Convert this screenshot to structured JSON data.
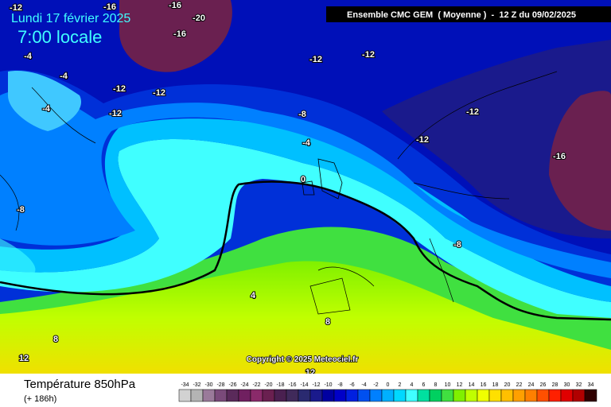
{
  "header": {
    "date": "Lundi 17 février 2025",
    "time": "7:00 locale",
    "model": "Ensemble CMC GEM  ( Moyenne )  -  12 Z du 09/02/2025"
  },
  "copyright": "Copyright © 2025 Meteociel.fr",
  "footer": {
    "variable": "Température 850hPa",
    "lead": "(+ 186h)"
  },
  "contour_labels": [
    "-12",
    "-16",
    "-16",
    "-20",
    "-16",
    "-4",
    "-4",
    "-4",
    "-12",
    "-12",
    "-12",
    "-12",
    "-12",
    "-8",
    "-4",
    "0",
    "-12",
    "-12",
    "-16",
    "-8",
    "-8",
    "4",
    "8",
    "8",
    "12",
    "12"
  ],
  "scale": {
    "values": [
      -34,
      -32,
      -30,
      -28,
      -26,
      -24,
      -22,
      -20,
      -18,
      -16,
      -14,
      -12,
      -10,
      -8,
      -6,
      -4,
      -2,
      0,
      2,
      4,
      6,
      8,
      10,
      12,
      14,
      16,
      18,
      20,
      22,
      24,
      26,
      28,
      30,
      32,
      34
    ],
    "colors": [
      "#d2d2d2",
      "#b4b4b4",
      "#9a7a9a",
      "#7a4a7a",
      "#5a2a5a",
      "#702060",
      "#8a2a6a",
      "#6a2050",
      "#4a2050",
      "#402a5a",
      "#2a2a70",
      "#1a1a8c",
      "#0000a0",
      "#0000c8",
      "#0020e0",
      "#0050f0",
      "#0080ff",
      "#00b0ff",
      "#00d8ff",
      "#40ffff",
      "#00e0a0",
      "#00d060",
      "#40e040",
      "#80f000",
      "#c0ff00",
      "#f0ff00",
      "#ffe000",
      "#ffc000",
      "#ffa000",
      "#ff8000",
      "#ff5000",
      "#ff2000",
      "#e00000",
      "#b00000",
      "#300000"
    ]
  }
}
